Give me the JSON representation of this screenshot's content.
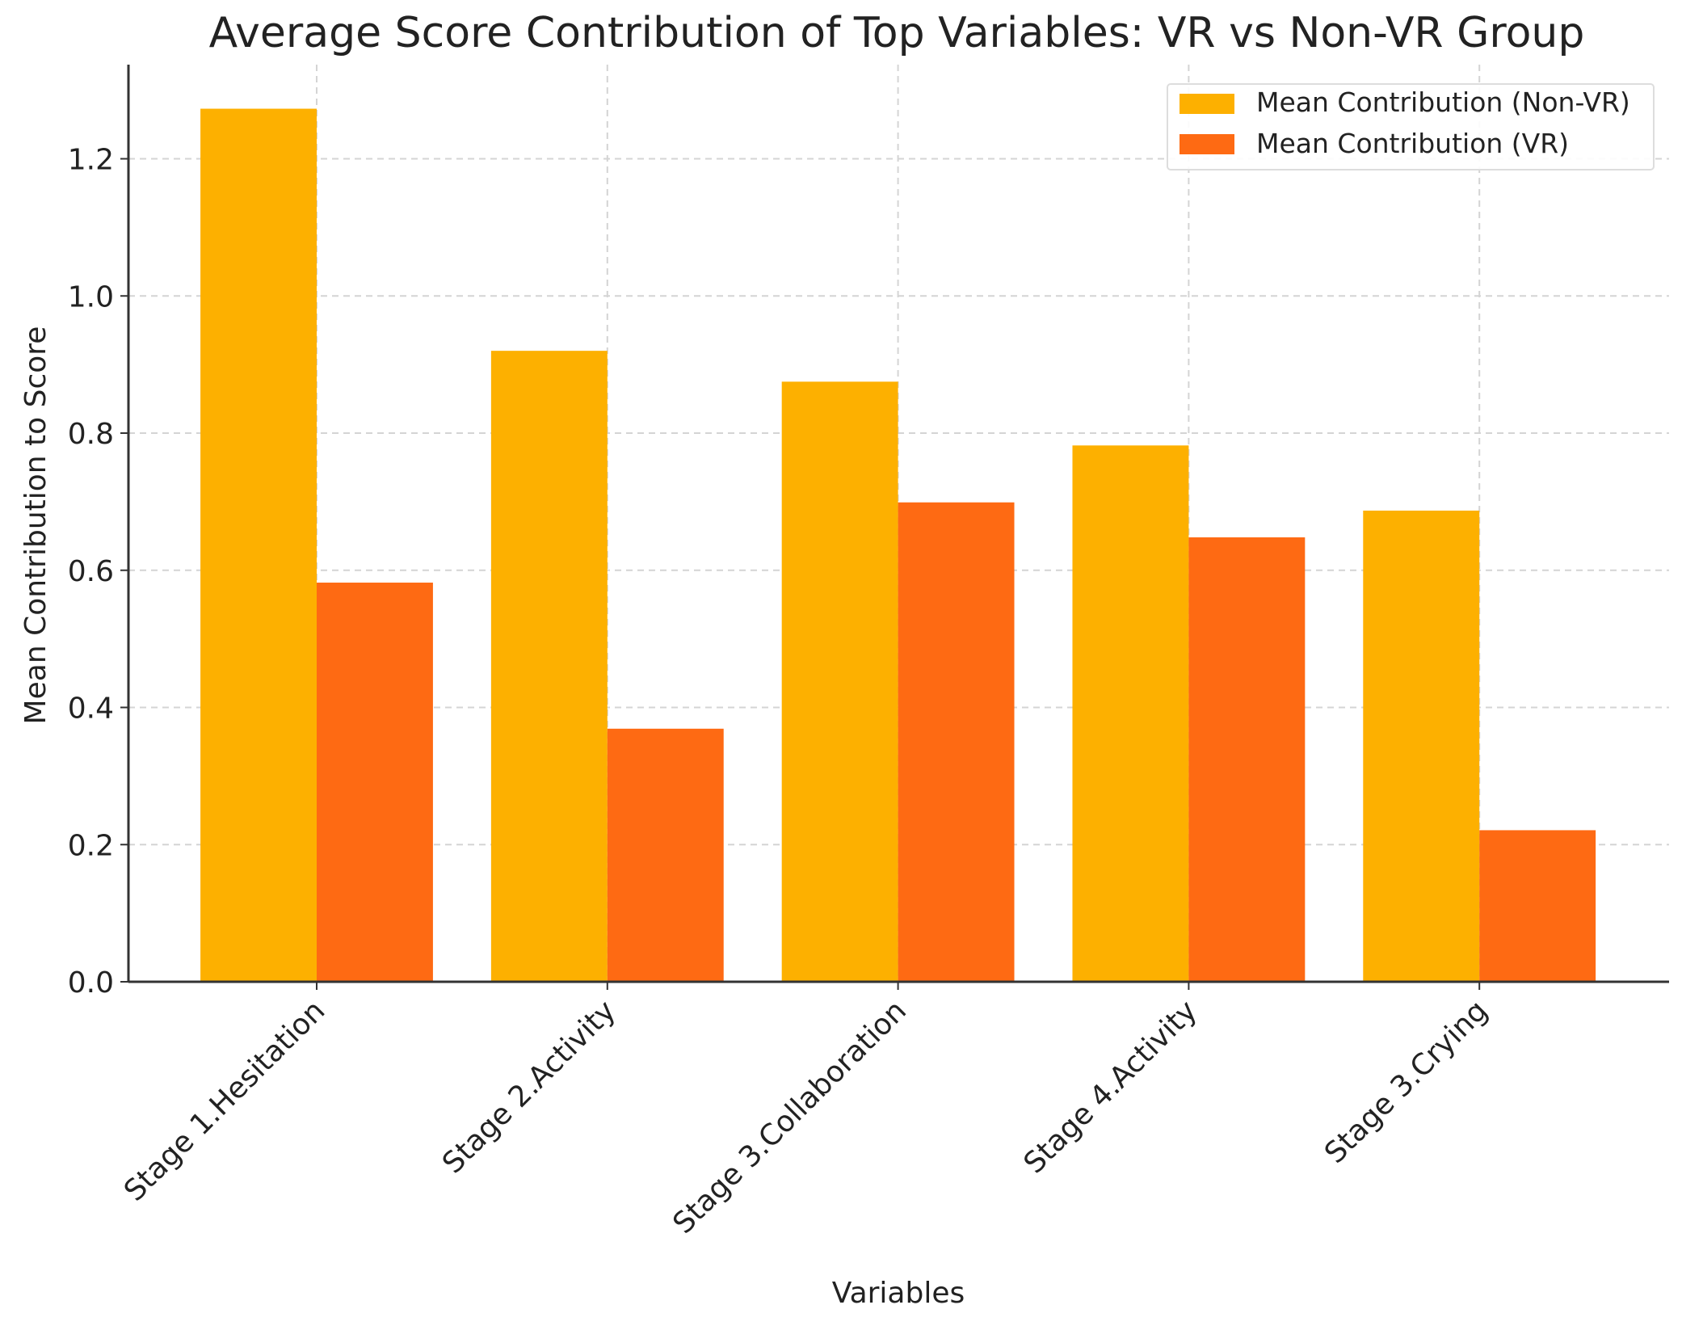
{
  "chart_data": {
    "type": "bar",
    "title": "Average Score Contribution of Top Variables: VR vs Non-VR Group",
    "xlabel": "Variables",
    "ylabel": "Mean Contribution to Score",
    "categories": [
      "Stage 1.Hesitation",
      "Stage 2.Activity",
      "Stage 3.Collaboration",
      "Stage 4.Activity",
      "Stage 3.Crying"
    ],
    "series": [
      {
        "name": "Mean Contribution (Non-VR)",
        "color": "#FDB000",
        "values": [
          1.273,
          0.92,
          0.875,
          0.782,
          0.687
        ]
      },
      {
        "name": "Mean Contribution (VR)",
        "color": "#FE6A13",
        "values": [
          0.582,
          0.369,
          0.699,
          0.648,
          0.221
        ]
      }
    ],
    "yticks": [
      "0.0",
      "0.2",
      "0.4",
      "0.6",
      "0.8",
      "1.0",
      "1.2"
    ],
    "ylim": [
      0,
      1.34
    ],
    "grid": true,
    "legend_position": "top-right"
  }
}
